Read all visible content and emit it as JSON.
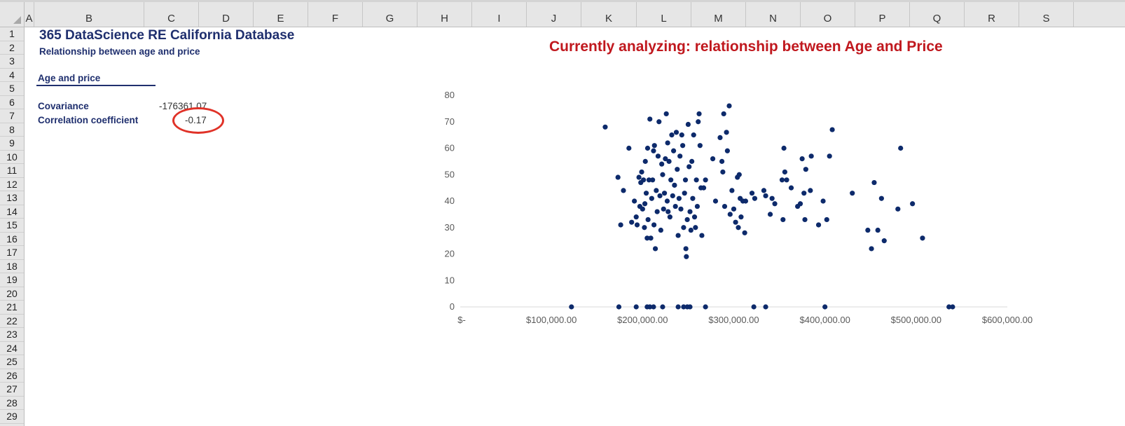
{
  "spreadsheet": {
    "columns": [
      "A",
      "B",
      "C",
      "D",
      "E",
      "F",
      "G",
      "H",
      "I",
      "J",
      "K",
      "L",
      "M",
      "N",
      "O",
      "P",
      "Q",
      "R",
      "S"
    ],
    "rows": [
      "1",
      "2",
      "3",
      "4",
      "5",
      "6",
      "7",
      "8",
      "9",
      "10",
      "11",
      "12",
      "13",
      "14",
      "15",
      "16",
      "17",
      "18",
      "19",
      "20",
      "21",
      "22",
      "23",
      "24",
      "25",
      "26",
      "27",
      "28",
      "29"
    ]
  },
  "sheet": {
    "title": "365 DataScience RE California Database",
    "subtitle": "Relationship between age and price",
    "section": "Age and price",
    "covariance_label": "Covariance",
    "covariance_value": "-176361.07",
    "correlation_label": "Correlation coefficient",
    "correlation_value": "-0.17",
    "analyzing_text": "Currently analyzing: relationship between Age and Price"
  },
  "colors": {
    "accent_navy": "#1f2f6e",
    "highlight_red": "#c0181e",
    "circle_red": "#e03228",
    "marker": "#0d2a6b"
  },
  "chart_data": {
    "type": "scatter",
    "title": "",
    "xlabel": "",
    "ylabel": "",
    "xlim": [
      0,
      600000
    ],
    "ylim": [
      0,
      80
    ],
    "xticks": [
      0,
      100000,
      200000,
      300000,
      400000,
      500000,
      600000
    ],
    "xtick_labels": [
      "$-",
      "$100,000.00",
      "$200,000.00",
      "$300,000.00",
      "$400,000.00",
      "$500,000.00",
      "$600,000.00"
    ],
    "yticks": [
      0,
      10,
      20,
      30,
      40,
      50,
      60,
      70,
      80
    ],
    "ytick_labels": [
      "0",
      "10",
      "20",
      "30",
      "40",
      "50",
      "60",
      "70",
      "80"
    ],
    "points": [
      [
        159000,
        68
      ],
      [
        173000,
        49
      ],
      [
        176000,
        31
      ],
      [
        179000,
        44
      ],
      [
        185000,
        60
      ],
      [
        188000,
        32
      ],
      [
        191000,
        40
      ],
      [
        193000,
        34
      ],
      [
        194000,
        31
      ],
      [
        196000,
        49
      ],
      [
        197000,
        38
      ],
      [
        198000,
        47
      ],
      [
        199000,
        51
      ],
      [
        200000,
        37
      ],
      [
        201000,
        48
      ],
      [
        202000,
        30
      ],
      [
        202500,
        39
      ],
      [
        203000,
        55
      ],
      [
        204000,
        43
      ],
      [
        205000,
        26
      ],
      [
        205500,
        60
      ],
      [
        206000,
        33
      ],
      [
        207000,
        48
      ],
      [
        208000,
        71
      ],
      [
        209000,
        26
      ],
      [
        210000,
        41
      ],
      [
        211000,
        48
      ],
      [
        212000,
        59
      ],
      [
        212500,
        31
      ],
      [
        213000,
        61
      ],
      [
        214000,
        22
      ],
      [
        215000,
        44
      ],
      [
        216000,
        36
      ],
      [
        217000,
        57
      ],
      [
        218000,
        70
      ],
      [
        219000,
        42
      ],
      [
        220000,
        29
      ],
      [
        221000,
        54
      ],
      [
        222000,
        50
      ],
      [
        223000,
        37
      ],
      [
        224000,
        43
      ],
      [
        225000,
        56
      ],
      [
        226000,
        73
      ],
      [
        227000,
        40
      ],
      [
        227500,
        62
      ],
      [
        228000,
        36
      ],
      [
        229000,
        55
      ],
      [
        230000,
        34
      ],
      [
        231000,
        48
      ],
      [
        232000,
        65
      ],
      [
        233000,
        42
      ],
      [
        234000,
        59
      ],
      [
        235000,
        46
      ],
      [
        236000,
        38
      ],
      [
        237000,
        66
      ],
      [
        238000,
        52
      ],
      [
        239000,
        27
      ],
      [
        240000,
        41
      ],
      [
        241000,
        57
      ],
      [
        242000,
        37
      ],
      [
        243000,
        65
      ],
      [
        244000,
        61
      ],
      [
        245000,
        30
      ],
      [
        246000,
        43
      ],
      [
        247000,
        48
      ],
      [
        247500,
        22
      ],
      [
        248000,
        19
      ],
      [
        249000,
        33
      ],
      [
        250000,
        69
      ],
      [
        251000,
        53
      ],
      [
        252000,
        36
      ],
      [
        253000,
        29
      ],
      [
        254000,
        55
      ],
      [
        255000,
        41
      ],
      [
        256000,
        65
      ],
      [
        257000,
        34
      ],
      [
        258000,
        30
      ],
      [
        259000,
        48
      ],
      [
        260000,
        38
      ],
      [
        261000,
        70
      ],
      [
        262000,
        73
      ],
      [
        263000,
        61
      ],
      [
        264000,
        45
      ],
      [
        265000,
        27
      ],
      [
        267000,
        45
      ],
      [
        269000,
        48
      ],
      [
        277000,
        56
      ],
      [
        280000,
        40
      ],
      [
        285000,
        64
      ],
      [
        287000,
        55
      ],
      [
        288000,
        51
      ],
      [
        289000,
        73
      ],
      [
        290000,
        38
      ],
      [
        292000,
        66
      ],
      [
        293000,
        59
      ],
      [
        295000,
        76
      ],
      [
        296000,
        35
      ],
      [
        298000,
        44
      ],
      [
        300000,
        37
      ],
      [
        302000,
        32
      ],
      [
        304000,
        49
      ],
      [
        305000,
        30
      ],
      [
        306000,
        50
      ],
      [
        307000,
        41
      ],
      [
        308000,
        34
      ],
      [
        310000,
        40
      ],
      [
        312000,
        28
      ],
      [
        313000,
        40
      ],
      [
        320000,
        43
      ],
      [
        323000,
        41
      ],
      [
        333000,
        44
      ],
      [
        335000,
        42
      ],
      [
        340000,
        35
      ],
      [
        342000,
        41
      ],
      [
        345000,
        39
      ],
      [
        353000,
        48
      ],
      [
        354000,
        33
      ],
      [
        355000,
        60
      ],
      [
        356000,
        51
      ],
      [
        358000,
        48
      ],
      [
        363000,
        45
      ],
      [
        370000,
        38
      ],
      [
        373000,
        39
      ],
      [
        375000,
        56
      ],
      [
        377000,
        43
      ],
      [
        378000,
        33
      ],
      [
        379000,
        52
      ],
      [
        384000,
        44
      ],
      [
        385000,
        57
      ],
      [
        393000,
        31
      ],
      [
        398000,
        40
      ],
      [
        402000,
        33
      ],
      [
        405000,
        57
      ],
      [
        408000,
        67
      ],
      [
        430000,
        43
      ],
      [
        447000,
        29
      ],
      [
        451000,
        22
      ],
      [
        454000,
        47
      ],
      [
        458000,
        29
      ],
      [
        462000,
        41
      ],
      [
        465000,
        25
      ],
      [
        480000,
        37
      ],
      [
        483000,
        60
      ],
      [
        496000,
        39
      ],
      [
        507000,
        26
      ],
      [
        122000,
        0
      ],
      [
        174000,
        0
      ],
      [
        193000,
        0
      ],
      [
        205000,
        0
      ],
      [
        208000,
        0
      ],
      [
        212000,
        0
      ],
      [
        222000,
        0
      ],
      [
        239000,
        0
      ],
      [
        245000,
        0
      ],
      [
        249000,
        0
      ],
      [
        252000,
        0
      ],
      [
        269000,
        0
      ],
      [
        322000,
        0
      ],
      [
        335000,
        0
      ],
      [
        400000,
        0
      ],
      [
        536000,
        0
      ],
      [
        540000,
        0
      ]
    ]
  }
}
